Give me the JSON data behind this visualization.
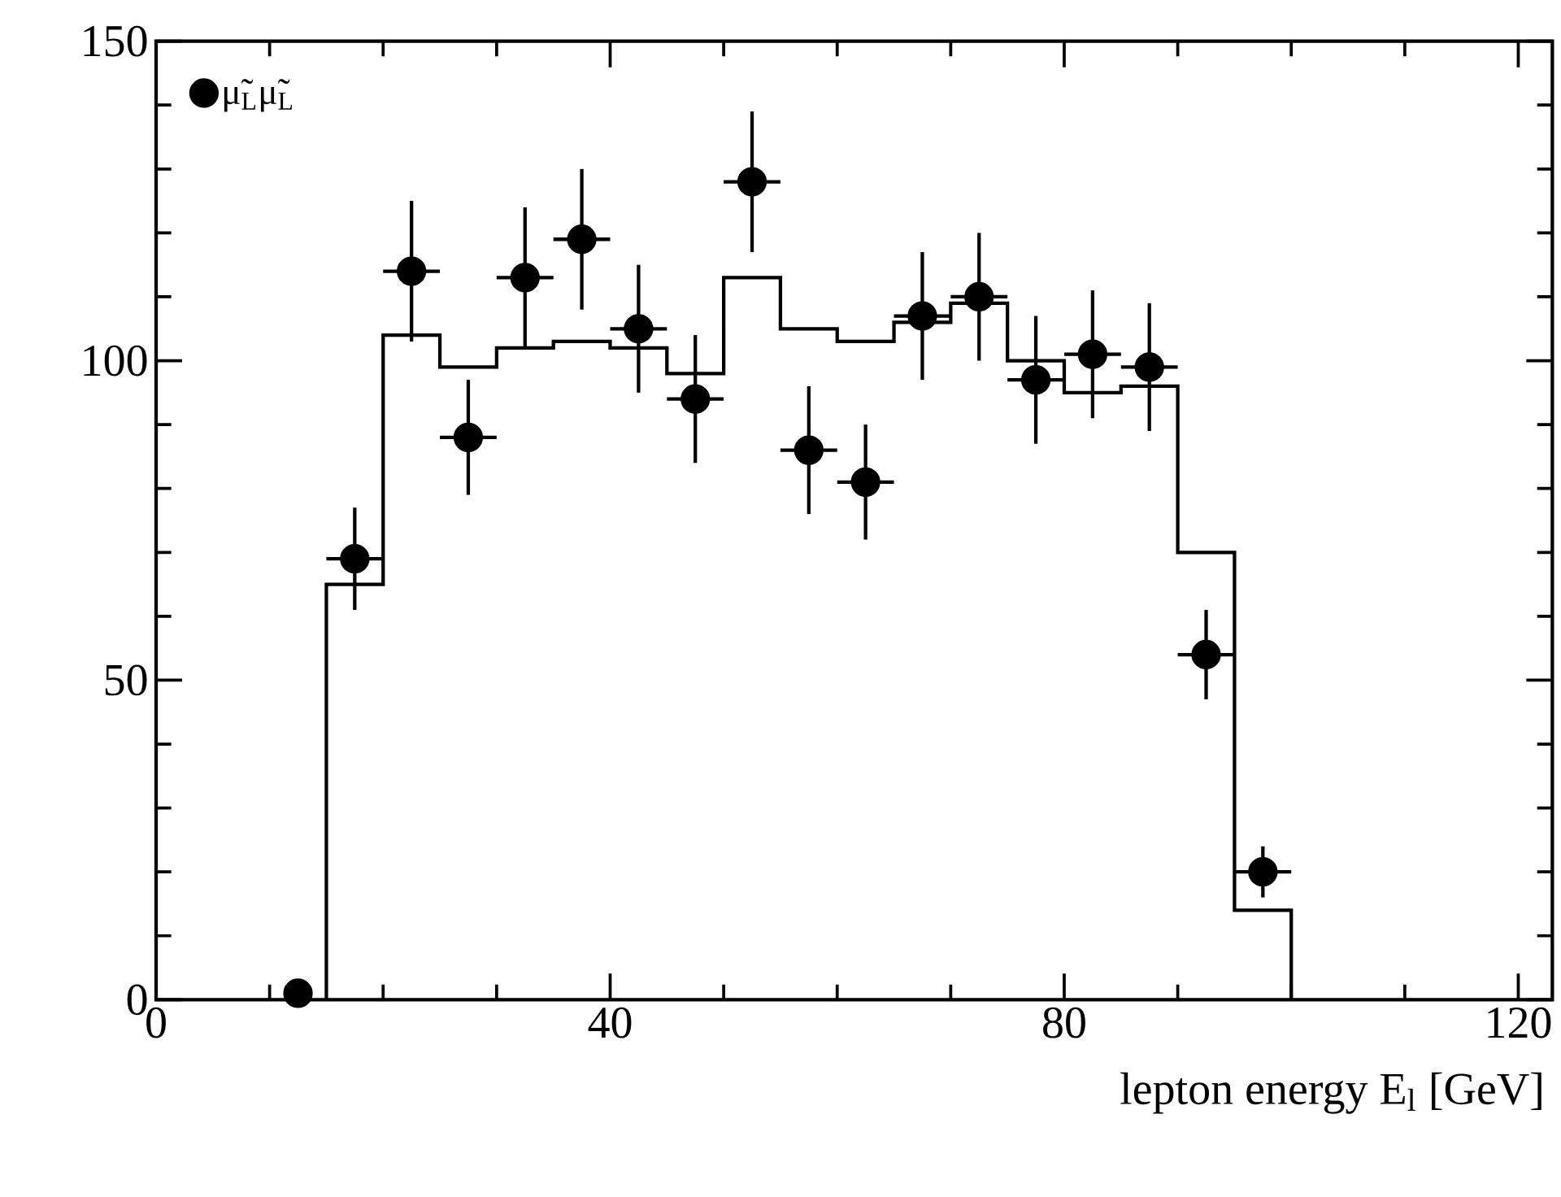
{
  "chart_data": {
    "type": "scatter",
    "xlabel": "lepton energy E$_{l}$   [GeV]",
    "xlim": [
      0,
      123
    ],
    "ylim": [
      0,
      150
    ],
    "xticks": [
      0,
      40,
      80,
      120
    ],
    "yticks": [
      0,
      50,
      100,
      150
    ],
    "legend": "top left",
    "marker": "circle",
    "series": [
      {
        "name": "μ̃$_{L}$μ̃$_{L}$",
        "color": "#000000",
        "x": [
          12.5,
          17.5,
          22.5,
          27.5,
          32.5,
          37.5,
          42.5,
          47.5,
          52.5,
          57.5,
          62.5,
          67.5,
          72.5,
          77.5,
          82.5,
          87.5,
          92.5,
          97.5
        ],
        "values": [
          1,
          69,
          114,
          88,
          113,
          119,
          105,
          94,
          128,
          86,
          81,
          107,
          110,
          97,
          101,
          99,
          54,
          20
        ],
        "errors": [
          null,
          8,
          11,
          9,
          11,
          11,
          10,
          10,
          11,
          10,
          9,
          10,
          10,
          10,
          10,
          10,
          7,
          4
        ],
        "xerrors": [
          null,
          2.5,
          2.5,
          2.5,
          2.5,
          2.5,
          2.5,
          2.5,
          2.5,
          2.5,
          2.5,
          2.5,
          2.5,
          2.5,
          2.5,
          2.5,
          2.5,
          2.5
        ]
      },
      {
        "type": "histogram",
        "color": "#000000",
        "bins": [
          15,
          20,
          25,
          30,
          35,
          40,
          45,
          50,
          55,
          60,
          65,
          70,
          75,
          80,
          85,
          90,
          95,
          100
        ],
        "values": [
          65,
          104,
          99,
          102,
          103,
          102,
          98,
          113,
          105,
          103,
          106,
          109,
          100,
          95,
          96,
          70,
          14
        ]
      }
    ]
  }
}
